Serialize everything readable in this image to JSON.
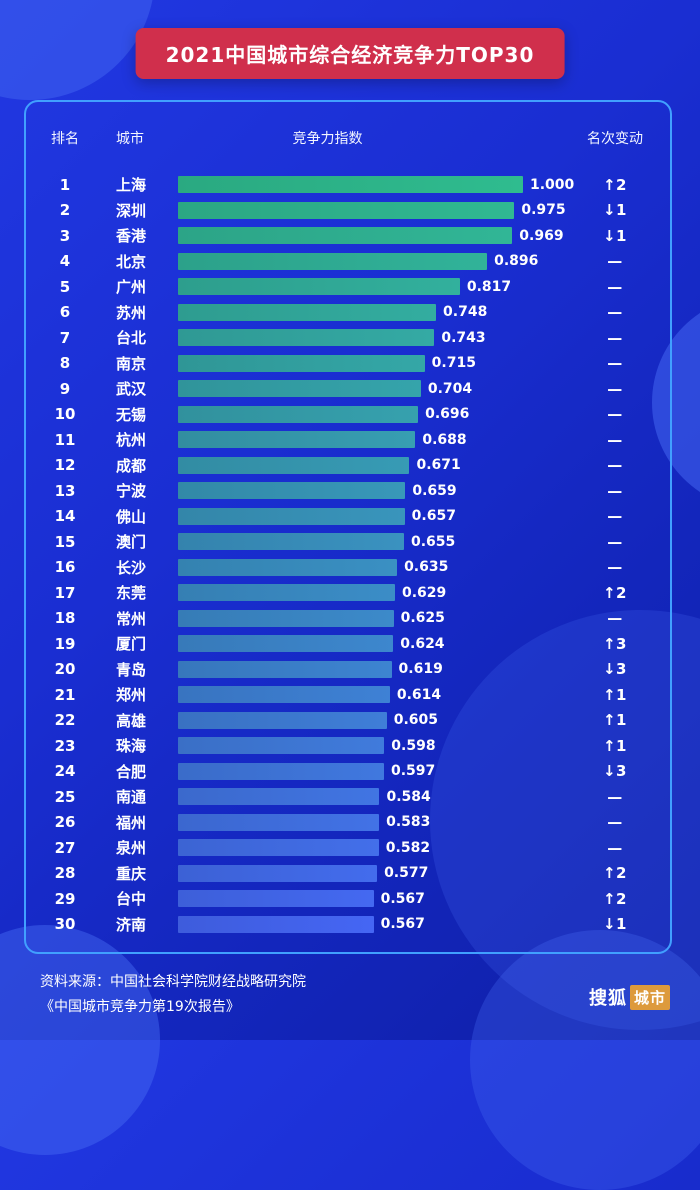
{
  "page": {
    "title": "2021中国城市综合经济竞争力TOP30"
  },
  "table": {
    "headers": {
      "rank": "排名",
      "city": "城市",
      "index": "竞争力指数",
      "change": "名次变动"
    }
  },
  "footer": {
    "line1": "资料来源：中国社会科学院财经战略研究院",
    "line2": "《中国城市竞争力第19次报告》"
  },
  "logo": {
    "text": "搜狐",
    "badge": "城市"
  },
  "colors": {
    "background": "#1A2ED2",
    "panel_border": "#41A0FF",
    "banner_red": "#D02F4C",
    "bar_from": "#2FBC8F",
    "bar_to": "#4566F4",
    "logo_badge": "#DD9A3C"
  },
  "chart_data": {
    "type": "bar",
    "orientation": "horizontal",
    "title": "2021中国城市综合经济竞争力TOP30",
    "value_axis_label": "竞争力指数",
    "xlim": [
      0,
      1
    ],
    "legend": "none",
    "rows": [
      {
        "rank": 1,
        "city": "上海",
        "value": 1.0,
        "value_label": "1.000",
        "change": "↑2"
      },
      {
        "rank": 2,
        "city": "深圳",
        "value": 0.975,
        "value_label": "0.975",
        "change": "↓1"
      },
      {
        "rank": 3,
        "city": "香港",
        "value": 0.969,
        "value_label": "0.969",
        "change": "↓1"
      },
      {
        "rank": 4,
        "city": "北京",
        "value": 0.896,
        "value_label": "0.896",
        "change": "—"
      },
      {
        "rank": 5,
        "city": "广州",
        "value": 0.817,
        "value_label": "0.817",
        "change": "—"
      },
      {
        "rank": 6,
        "city": "苏州",
        "value": 0.748,
        "value_label": "0.748",
        "change": "—"
      },
      {
        "rank": 7,
        "city": "台北",
        "value": 0.743,
        "value_label": "0.743",
        "change": "—"
      },
      {
        "rank": 8,
        "city": "南京",
        "value": 0.715,
        "value_label": "0.715",
        "change": "—"
      },
      {
        "rank": 9,
        "city": "武汉",
        "value": 0.704,
        "value_label": "0.704",
        "change": "—"
      },
      {
        "rank": 10,
        "city": "无锡",
        "value": 0.696,
        "value_label": "0.696",
        "change": "—"
      },
      {
        "rank": 11,
        "city": "杭州",
        "value": 0.688,
        "value_label": "0.688",
        "change": "—"
      },
      {
        "rank": 12,
        "city": "成都",
        "value": 0.671,
        "value_label": "0.671",
        "change": "—"
      },
      {
        "rank": 13,
        "city": "宁波",
        "value": 0.659,
        "value_label": "0.659",
        "change": "—"
      },
      {
        "rank": 14,
        "city": "佛山",
        "value": 0.657,
        "value_label": "0.657",
        "change": "—"
      },
      {
        "rank": 15,
        "city": "澳门",
        "value": 0.655,
        "value_label": "0.655",
        "change": "—"
      },
      {
        "rank": 16,
        "city": "长沙",
        "value": 0.635,
        "value_label": "0.635",
        "change": "—"
      },
      {
        "rank": 17,
        "city": "东莞",
        "value": 0.629,
        "value_label": "0.629",
        "change": "↑2"
      },
      {
        "rank": 18,
        "city": "常州",
        "value": 0.625,
        "value_label": "0.625",
        "change": "—"
      },
      {
        "rank": 19,
        "city": "厦门",
        "value": 0.624,
        "value_label": "0.624",
        "change": "↑3"
      },
      {
        "rank": 20,
        "city": "青岛",
        "value": 0.619,
        "value_label": "0.619",
        "change": "↓3"
      },
      {
        "rank": 21,
        "city": "郑州",
        "value": 0.614,
        "value_label": "0.614",
        "change": "↑1"
      },
      {
        "rank": 22,
        "city": "高雄",
        "value": 0.605,
        "value_label": "0.605",
        "change": "↑1"
      },
      {
        "rank": 23,
        "city": "珠海",
        "value": 0.598,
        "value_label": "0.598",
        "change": "↑1"
      },
      {
        "rank": 24,
        "city": "合肥",
        "value": 0.597,
        "value_label": "0.597",
        "change": "↓3"
      },
      {
        "rank": 25,
        "city": "南通",
        "value": 0.584,
        "value_label": "0.584",
        "change": "—"
      },
      {
        "rank": 26,
        "city": "福州",
        "value": 0.583,
        "value_label": "0.583",
        "change": "—"
      },
      {
        "rank": 27,
        "city": "泉州",
        "value": 0.582,
        "value_label": "0.582",
        "change": "—"
      },
      {
        "rank": 28,
        "city": "重庆",
        "value": 0.577,
        "value_label": "0.577",
        "change": "↑2"
      },
      {
        "rank": 29,
        "city": "台中",
        "value": 0.567,
        "value_label": "0.567",
        "change": "↑2"
      },
      {
        "rank": 30,
        "city": "济南",
        "value": 0.567,
        "value_label": "0.567",
        "change": "↓1"
      }
    ]
  }
}
